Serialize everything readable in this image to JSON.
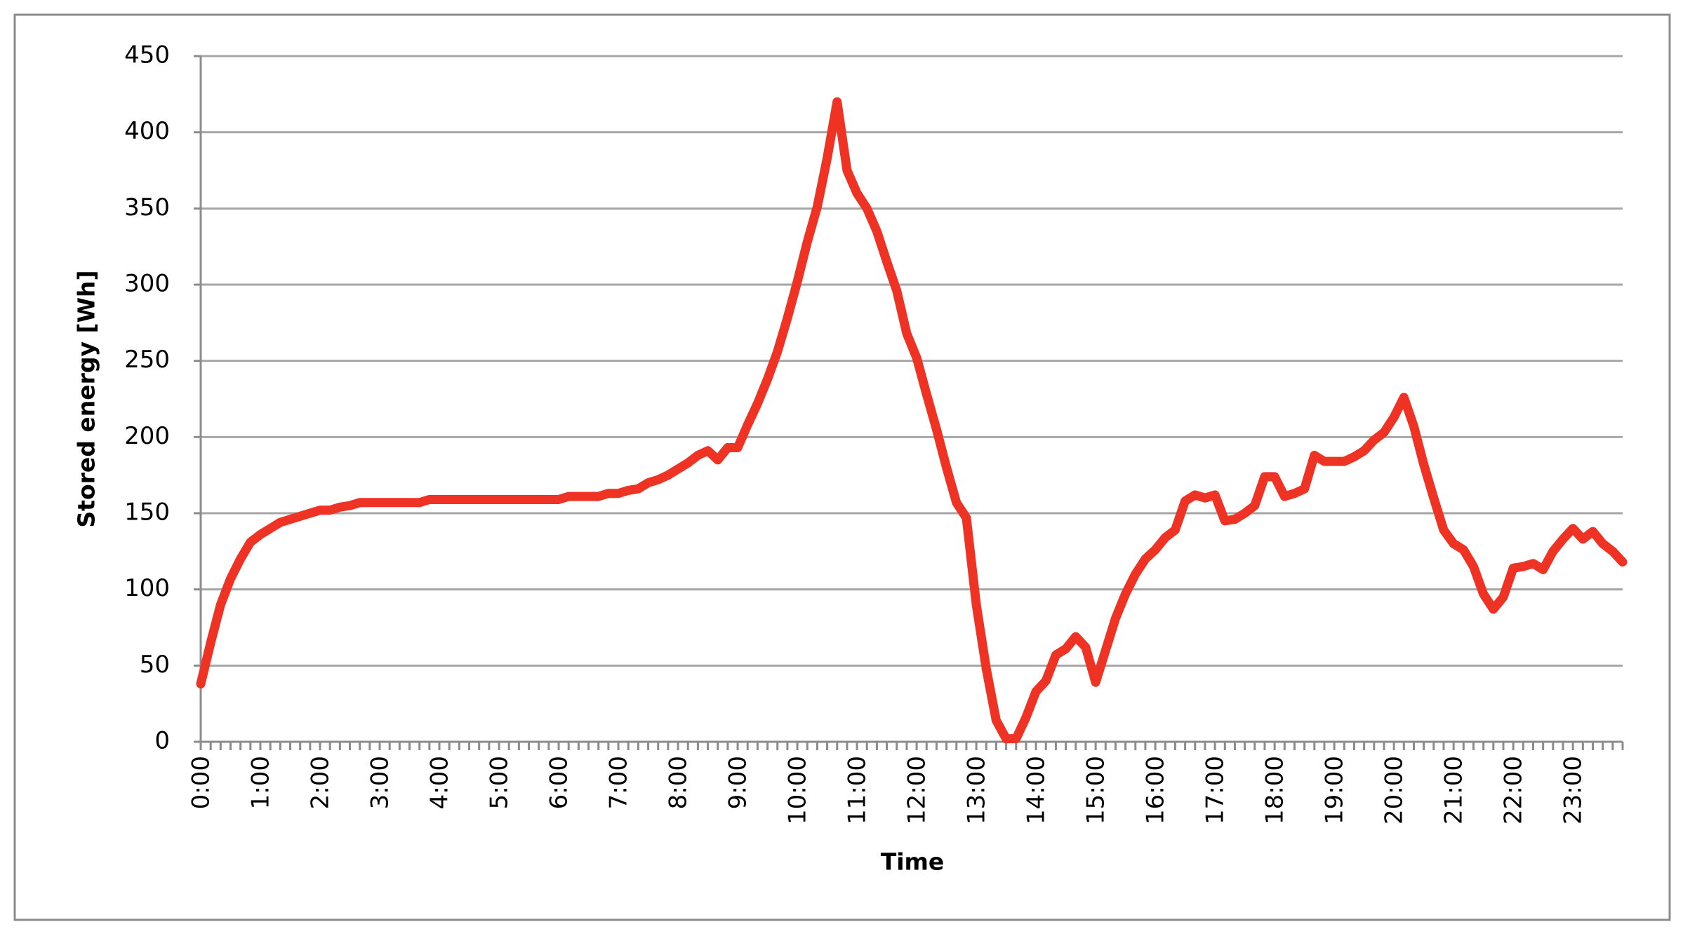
{
  "chart_data": {
    "type": "line",
    "x_label": "Time",
    "y_label": "Stored energy [Wh]",
    "categories": [
      "0:00",
      null,
      null,
      null,
      null,
      null,
      "1:00",
      null,
      null,
      null,
      null,
      null,
      "2:00",
      null,
      null,
      null,
      null,
      null,
      "3:00",
      null,
      null,
      null,
      null,
      null,
      "4:00",
      null,
      null,
      null,
      null,
      null,
      "5:00",
      null,
      null,
      null,
      null,
      null,
      "6:00",
      null,
      null,
      null,
      null,
      null,
      "7:00",
      null,
      null,
      null,
      null,
      null,
      "8:00",
      null,
      null,
      null,
      null,
      null,
      "9:00",
      null,
      null,
      null,
      null,
      null,
      "10:00",
      null,
      null,
      null,
      null,
      null,
      "11:00",
      null,
      null,
      null,
      null,
      null,
      "12:00",
      null,
      null,
      null,
      null,
      null,
      "13:00",
      null,
      null,
      null,
      null,
      null,
      "14:00",
      null,
      null,
      null,
      null,
      null,
      "15:00",
      null,
      null,
      null,
      null,
      null,
      "16:00",
      null,
      null,
      null,
      null,
      null,
      "17:00",
      null,
      null,
      null,
      null,
      null,
      "18:00",
      null,
      null,
      null,
      null,
      null,
      "19:00",
      null,
      null,
      null,
      null,
      null,
      "20:00",
      null,
      null,
      null,
      null,
      null,
      "21:00",
      null,
      null,
      null,
      null,
      null,
      "22:00",
      null,
      null,
      null,
      null,
      null,
      "23:00",
      null,
      null,
      null,
      null,
      null
    ],
    "values": [
      38,
      65,
      90,
      107,
      120,
      131,
      136,
      140,
      144,
      146,
      148,
      150,
      152,
      152,
      154,
      155,
      157,
      157,
      157,
      157,
      157,
      157,
      157,
      159,
      159,
      159,
      159,
      159,
      159,
      159,
      159,
      159,
      159,
      159,
      159,
      159,
      159,
      161,
      161,
      161,
      161,
      163,
      163,
      165,
      166,
      170,
      172,
      175,
      179,
      183,
      188,
      191,
      185,
      193,
      193,
      208,
      222,
      238,
      256,
      278,
      302,
      328,
      351,
      383,
      420,
      375,
      360,
      350,
      335,
      315,
      296,
      268,
      252,
      228,
      205,
      180,
      157,
      147,
      90,
      48,
      14,
      2,
      2,
      16,
      33,
      40,
      57,
      61,
      69,
      62,
      39,
      60,
      81,
      97,
      110,
      120,
      126,
      134,
      139,
      158,
      162,
      160,
      162,
      145,
      146,
      150,
      155,
      174,
      174,
      161,
      163,
      166,
      188,
      184,
      184,
      184,
      187,
      191,
      198,
      203,
      213,
      226,
      207,
      182,
      160,
      139,
      130,
      126,
      115,
      97,
      87,
      95,
      114,
      115,
      117,
      113,
      125,
      133,
      140,
      133,
      138,
      130,
      125,
      118
    ],
    "color": "#ee3224",
    "ylim": [
      0,
      450
    ],
    "yticks": [
      0,
      50,
      100,
      150,
      200,
      250,
      300,
      350,
      400,
      450
    ],
    "grid": true
  }
}
